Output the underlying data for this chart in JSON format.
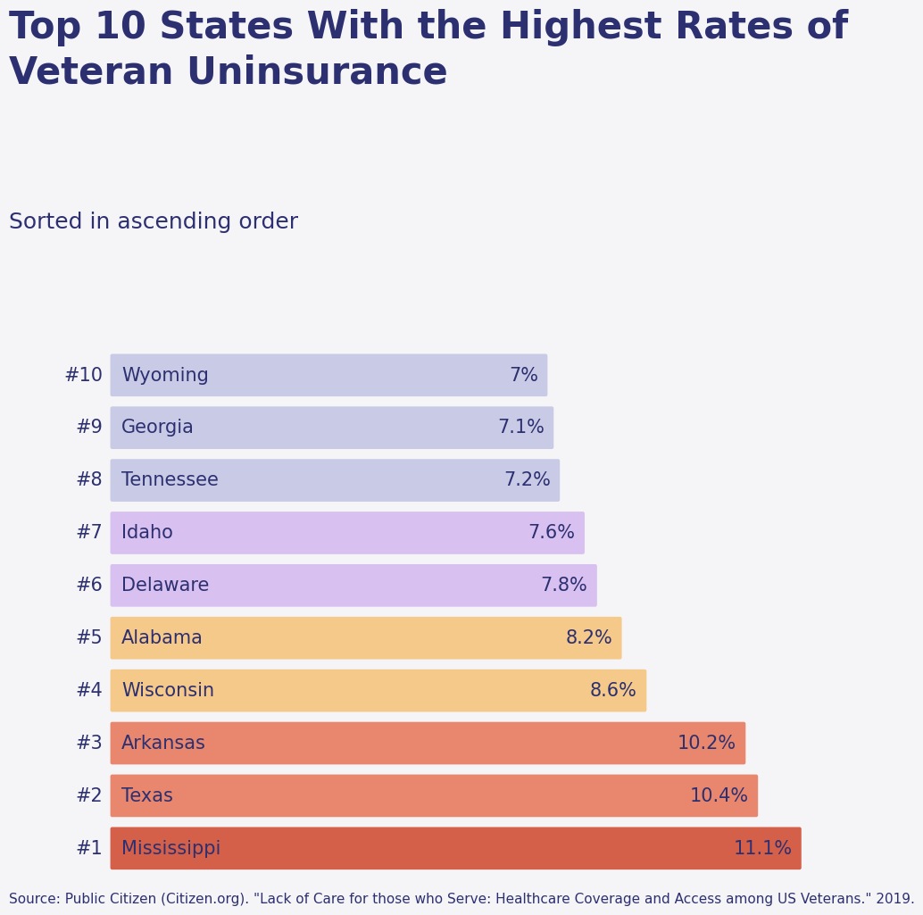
{
  "title": "Top 10 States With the Highest Rates of\nVeteran Uninsurance",
  "subtitle": "Sorted in ascending order",
  "source": "Source: Public Citizen (Citizen.org). \"Lack of Care for those who Serve: Healthcare Coverage and Access among US Veterans.\" 2019.",
  "background_color": "#f5f5f8",
  "text_color": "#2d3070",
  "bars": [
    {
      "rank": "#10",
      "state": "Wyoming",
      "value": 7.0,
      "label": "7%",
      "color": "#c8cae6"
    },
    {
      "rank": "#9",
      "state": "Georgia",
      "value": 7.1,
      "label": "7.1%",
      "color": "#c8cae6"
    },
    {
      "rank": "#8",
      "state": "Tennessee",
      "value": 7.2,
      "label": "7.2%",
      "color": "#c8cae6"
    },
    {
      "rank": "#7",
      "state": "Idaho",
      "value": 7.6,
      "label": "7.6%",
      "color": "#d8c0f0"
    },
    {
      "rank": "#6",
      "state": "Delaware",
      "value": 7.8,
      "label": "7.8%",
      "color": "#d8c0f0"
    },
    {
      "rank": "#5",
      "state": "Alabama",
      "value": 8.2,
      "label": "8.2%",
      "color": "#f5c98a"
    },
    {
      "rank": "#4",
      "state": "Wisconsin",
      "value": 8.6,
      "label": "8.6%",
      "color": "#f5c98a"
    },
    {
      "rank": "#3",
      "state": "Arkansas",
      "value": 10.2,
      "label": "10.2%",
      "color": "#e8876e"
    },
    {
      "rank": "#2",
      "state": "Texas",
      "value": 10.4,
      "label": "10.4%",
      "color": "#e8876e"
    },
    {
      "rank": "#1",
      "state": "Mississippi",
      "value": 11.1,
      "label": "11.1%",
      "color": "#d4604a"
    }
  ],
  "xlim_left": -1.2,
  "xlim_right": 12.5,
  "title_fontsize": 30,
  "subtitle_fontsize": 18,
  "bar_label_fontsize": 15,
  "rank_fontsize": 15,
  "state_fontsize": 15,
  "source_fontsize": 11,
  "bar_height": 0.62,
  "bar_gap": 0.22
}
